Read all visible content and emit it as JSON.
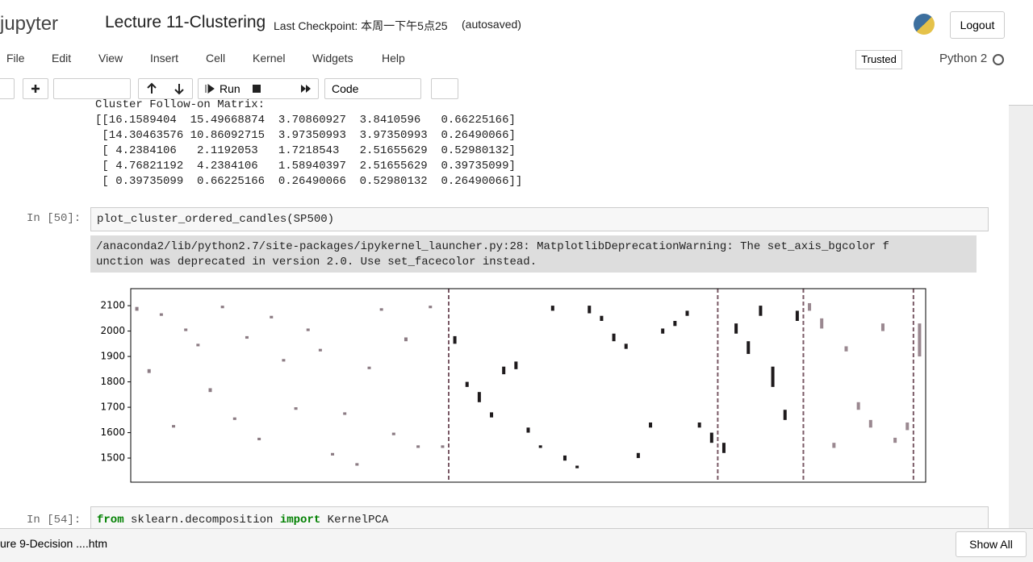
{
  "header": {
    "logo": "jupyter",
    "title": "Lecture 11-Clustering",
    "checkpoint": "Last Checkpoint: 本周一下午5点25",
    "autosaved": "(autosaved)",
    "logout": "Logout"
  },
  "menu": [
    "File",
    "Edit",
    "View",
    "Insert",
    "Cell",
    "Kernel",
    "Widgets",
    "Help"
  ],
  "status": {
    "trusted": "Trusted",
    "kernel": "Python 2"
  },
  "toolbar": {
    "run": "Run",
    "cell_type": "Code"
  },
  "output": [
    "Cluster Follow-on Matrix:",
    "[[16.1589404  15.49668874  3.70860927  3.8410596   0.66225166]",
    " [14.30463576 10.86092715  3.97350993  3.97350993  0.26490066]",
    " [ 4.2384106   2.1192053   1.7218543   2.51655629  0.52980132]",
    " [ 4.76821192  4.2384106   1.58940397  2.51655629  0.39735099]",
    " [ 0.39735099  0.66225166  0.26490066  0.52980132  0.26490066]]"
  ],
  "cell50": {
    "prompt": "In [50]:",
    "code": "plot_cluster_ordered_candles(SP500)",
    "stderr": [
      "/anaconda2/lib/python2.7/site-packages/ipykernel_launcher.py:28: MatplotlibDeprecationWarning: The set_axis_bgcolor f",
      "unction was deprecated in version 2.0. Use set_facecolor instead."
    ]
  },
  "cell54": {
    "prompt": "In [54]:",
    "code": [
      "from",
      " sklearn.decomposition ",
      "import",
      " KernelPCA"
    ]
  },
  "download": {
    "file": "ure 9-Decision ....htm",
    "show_all": "Show All"
  },
  "chart_data": {
    "type": "candlestick",
    "ylim": [
      1405,
      2167
    ],
    "yticks": [
      1500,
      1600,
      1700,
      1800,
      1900,
      2000,
      2100
    ],
    "clusters": [
      {
        "color": "#8c7c84",
        "candles": [
          [
            2080,
            2095
          ],
          [
            1850,
            1835
          ],
          [
            2060,
            2070
          ],
          [
            1630,
            1620
          ],
          [
            2000,
            2010
          ],
          [
            1950,
            1940
          ],
          [
            1760,
            1775
          ],
          [
            2090,
            2100
          ],
          [
            1650,
            1660
          ],
          [
            1980,
            1970
          ],
          [
            1570,
            1580
          ],
          [
            2050,
            2060
          ],
          [
            1880,
            1890
          ],
          [
            1700,
            1690
          ],
          [
            2010,
            2000
          ],
          [
            1920,
            1930
          ],
          [
            1520,
            1510
          ],
          [
            1680,
            1670
          ],
          [
            1480,
            1470
          ],
          [
            1860,
            1850
          ],
          [
            2080,
            2090
          ],
          [
            1600,
            1590
          ],
          [
            1960,
            1975
          ],
          [
            1540,
            1550
          ],
          [
            2100,
            2090
          ],
          [
            1550,
            1540
          ]
        ]
      },
      {
        "color": "#1e1a1c",
        "candles": [
          [
            1980,
            1950
          ],
          [
            1800,
            1780
          ],
          [
            1760,
            1720
          ],
          [
            1660,
            1680
          ],
          [
            1830,
            1860
          ],
          [
            1850,
            1880
          ],
          [
            1620,
            1600
          ],
          [
            1550,
            1540
          ],
          [
            2080,
            2100
          ],
          [
            1510,
            1490
          ],
          [
            1470,
            1460
          ],
          [
            2070,
            2100
          ],
          [
            2040,
            2060
          ],
          [
            1990,
            1960
          ],
          [
            1950,
            1930
          ],
          [
            1500,
            1520
          ],
          [
            1640,
            1620
          ],
          [
            1990,
            2010
          ],
          [
            2020,
            2040
          ],
          [
            2060,
            2080
          ],
          [
            1620,
            1640
          ],
          [
            1600,
            1560
          ]
        ]
      },
      {
        "color": "#1e1a1c",
        "candles": [
          [
            1560,
            1520
          ],
          [
            2030,
            1990
          ],
          [
            1960,
            1910
          ],
          [
            2100,
            2060
          ],
          [
            1860,
            1780
          ],
          [
            1690,
            1650
          ],
          [
            2040,
            2080
          ]
        ]
      },
      {
        "color": "#9a8890",
        "candles": [
          [
            2110,
            2080
          ],
          [
            2050,
            2010
          ],
          [
            1560,
            1540
          ],
          [
            1940,
            1920
          ],
          [
            1720,
            1690
          ],
          [
            1650,
            1620
          ],
          [
            2000,
            2030
          ],
          [
            1580,
            1560
          ],
          [
            1640,
            1610
          ]
        ]
      },
      {
        "color": "#9a8890",
        "candles": [
          [
            2030,
            1900
          ]
        ]
      }
    ]
  }
}
